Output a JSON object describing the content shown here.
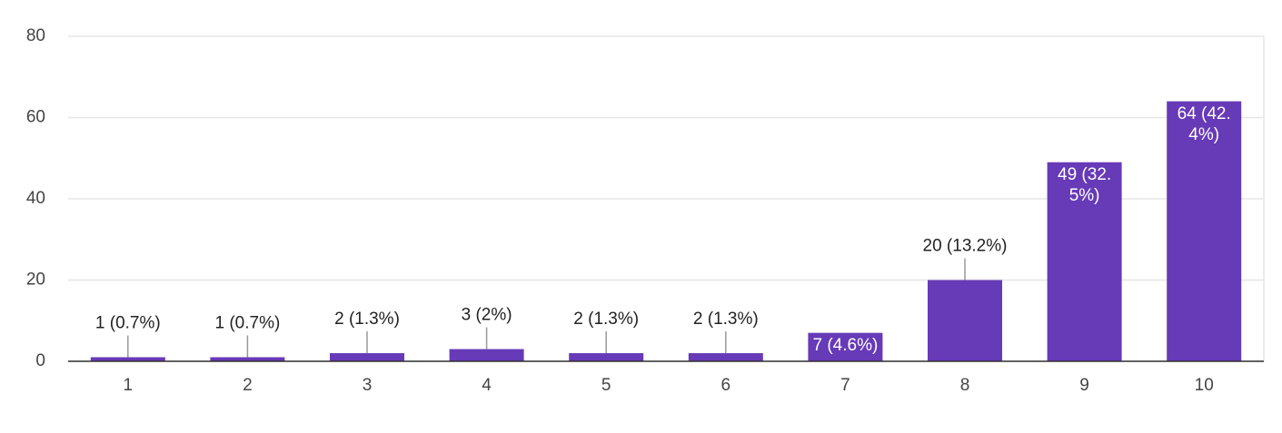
{
  "chart_data": {
    "type": "bar",
    "categories": [
      "1",
      "2",
      "3",
      "4",
      "5",
      "6",
      "7",
      "8",
      "9",
      "10"
    ],
    "values": [
      1,
      1,
      2,
      3,
      2,
      2,
      7,
      20,
      49,
      64
    ],
    "value_labels": [
      "1 (0.7%)",
      "1 (0.7%)",
      "2 (1.3%)",
      "3 (2%)",
      "2 (1.3%)",
      "2 (1.3%)",
      "7 (4.6%)",
      "20 (13.2%)",
      "49 (32.5%)",
      "64 (42.4%)"
    ],
    "color": "#673ab7",
    "ylim": [
      0,
      80
    ],
    "yticks": [
      0,
      20,
      40,
      60,
      80
    ],
    "grid": true
  }
}
